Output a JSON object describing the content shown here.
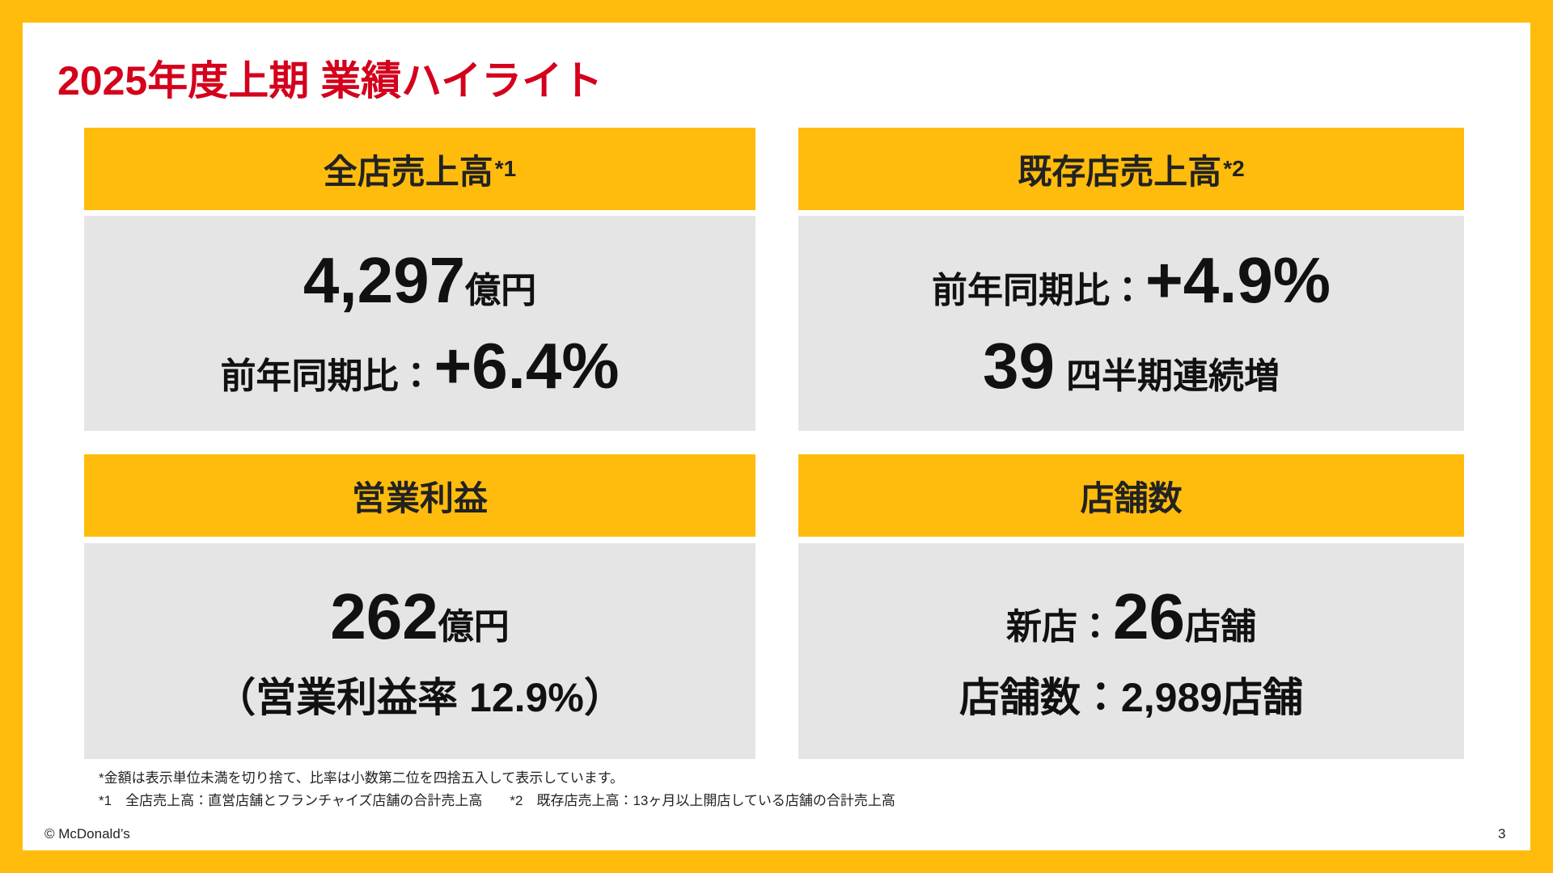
{
  "title": "2025年度上期 業績ハイライト",
  "panels": [
    {
      "header": "全店売上高",
      "note": "*1",
      "lines": [
        [
          "4,297",
          "億円"
        ],
        [
          "前年同期比：",
          "+6.4%"
        ]
      ]
    },
    {
      "header": "既存店売上高",
      "note": "*2",
      "lines": [
        [
          "前年同期比：",
          "+4.9%"
        ],
        [
          "39",
          "四半期連続増"
        ]
      ]
    },
    {
      "header": "営業利益",
      "lines": [
        [
          "262",
          "億円"
        ],
        [
          "（営業利益率 12.9%）"
        ]
      ]
    },
    {
      "header": "店舗数",
      "lines": [
        [
          "新店：",
          "26",
          "店舗"
        ],
        [
          "店舗数：2,989店舗"
        ]
      ]
    }
  ],
  "footnotes": [
    "*金額は表示単位未満を切り捨て、比率は小数第二位を四捨五入して表示しています。",
    "*1　全店売上高：直営店舗とフランチャイズ店舗の合計売上高　　*2　既存店売上高：13ヶ月以上開店している店舗の合計売上高"
  ],
  "copyright": "© McDonald’s",
  "page_number": "3"
}
